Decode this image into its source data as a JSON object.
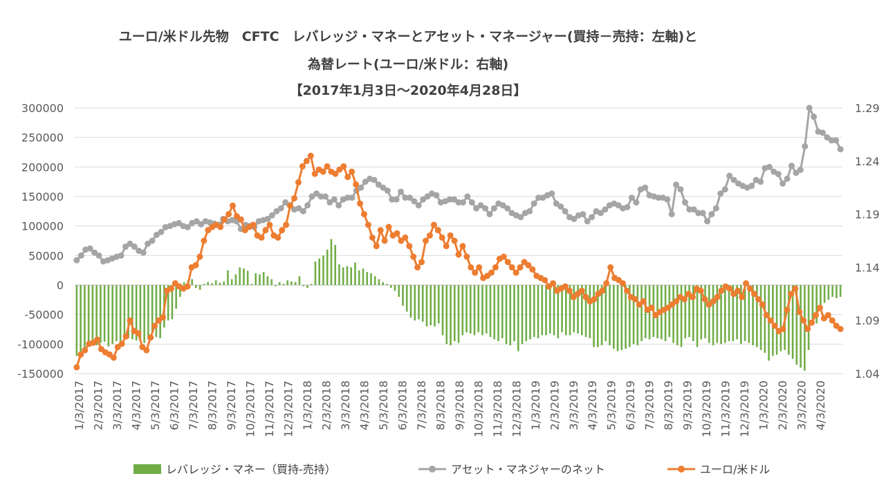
{
  "chart_data": {
    "type": "bar+line",
    "title_lines": [
      "ユーロ/米ドル先物　CFTC　レバレッジ・マネーとアセット・マネージャー(買持－売持：左軸)と",
      "為替レート(ユーロ/米ドル：右軸)",
      "【2017年1月3日～2020年4月28日】"
    ],
    "left_axis": {
      "ylim": [
        -150000,
        300000
      ],
      "ticks": [
        "300000",
        "250000",
        "200000",
        "150000",
        "100000",
        "50000",
        "0",
        "-50000",
        "-100000",
        "-150000"
      ]
    },
    "right_axis": {
      "ylim": [
        1.04,
        1.29
      ],
      "ticks": [
        "1.29",
        "1.24",
        "1.19",
        "1.14",
        "1.09",
        "1.04"
      ]
    },
    "x_tick_labels": [
      "1/3/2017",
      "2/3/2017",
      "3/3/2017",
      "4/3/2017",
      "5/3/2017",
      "6/3/2017",
      "7/3/2017",
      "8/3/2017",
      "9/3/2017",
      "10/3/2017",
      "11/3/2017",
      "12/3/2017",
      "1/3/2018",
      "2/3/2018",
      "3/3/2018",
      "4/3/2018",
      "5/3/2018",
      "6/3/2018",
      "7/3/2018",
      "8/3/2018",
      "9/3/2018",
      "10/3/2018",
      "11/3/2018",
      "12/3/2018",
      "1/3/2019",
      "2/3/2019",
      "3/3/2019",
      "4/3/2019",
      "5/3/2019",
      "6/3/2019",
      "7/3/2019",
      "8/3/2019",
      "9/3/2019",
      "10/3/2019",
      "11/3/2019",
      "12/3/2019",
      "1/3/2020",
      "2/3/2020",
      "3/3/2020",
      "4/3/2020"
    ],
    "grid": true,
    "legend_position": "bottom",
    "series": [
      {
        "name": "レバレッジ・マネー（買持-売持）",
        "kind": "bar",
        "axis": "left",
        "color": "#70AD47",
        "values": [
          -120000,
          -115000,
          -108000,
          -104000,
          -100000,
          -102000,
          -98000,
          -96000,
          -104000,
          -100000,
          -95000,
          -98000,
          -92000,
          -90000,
          -92000,
          -94000,
          -96000,
          -98000,
          -92000,
          -80000,
          -88000,
          -90000,
          -72000,
          -60000,
          -58000,
          -40000,
          -20000,
          5000,
          8000,
          10000,
          -5000,
          -8000,
          2000,
          5000,
          3000,
          8000,
          4000,
          6000,
          25000,
          10000,
          18000,
          30000,
          28000,
          24000,
          2000,
          20000,
          18000,
          22000,
          15000,
          10000,
          -2000,
          5000,
          2000,
          8000,
          6000,
          5000,
          15000,
          -2000,
          -5000,
          2000,
          40000,
          45000,
          50000,
          60000,
          78000,
          68000,
          35000,
          30000,
          32000,
          30000,
          38000,
          25000,
          28000,
          22000,
          20000,
          15000,
          10000,
          5000,
          2000,
          -5000,
          -10000,
          -20000,
          -35000,
          -45000,
          -55000,
          -60000,
          -58000,
          -62000,
          -70000,
          -68000,
          -70000,
          -65000,
          -85000,
          -100000,
          -102000,
          -95000,
          -98000,
          -85000,
          -80000,
          -82000,
          -85000,
          -80000,
          -85000,
          -82000,
          -88000,
          -92000,
          -95000,
          -90000,
          -100000,
          -102000,
          -95000,
          -112000,
          -100000,
          -95000,
          -92000,
          -88000,
          -90000,
          -85000,
          -85000,
          -82000,
          -85000,
          -90000,
          -80000,
          -85000,
          -85000,
          -80000,
          -82000,
          -85000,
          -88000,
          -90000,
          -105000,
          -105000,
          -102000,
          -95000,
          -102000,
          -108000,
          -112000,
          -110000,
          -108000,
          -105000,
          -100000,
          -102000,
          -95000,
          -90000,
          -92000,
          -88000,
          -90000,
          -92000,
          -95000,
          -88000,
          -98000,
          -102000,
          -105000,
          -90000,
          -88000,
          -95000,
          -105000,
          -92000,
          -90000,
          -98000,
          -102000,
          -98000,
          -100000,
          -98000,
          -95000,
          -95000,
          -92000,
          -100000,
          -95000,
          -98000,
          -102000,
          -105000,
          -110000,
          -115000,
          -128000,
          -120000,
          -118000,
          -112000,
          -110000,
          -118000,
          -125000,
          -135000,
          -140000,
          -145000,
          -110000,
          -60000,
          -65000,
          -40000,
          -30000,
          -25000,
          -20000,
          -22000,
          -20000
        ]
      },
      {
        "name": "アセット・マネジャーのネット",
        "kind": "line",
        "axis": "left",
        "color": "#A5A5A5",
        "values": [
          42000,
          50000,
          60000,
          62000,
          55000,
          50000,
          40000,
          42000,
          45000,
          48000,
          50000,
          65000,
          70000,
          65000,
          58000,
          55000,
          70000,
          75000,
          85000,
          90000,
          98000,
          100000,
          103000,
          105000,
          100000,
          98000,
          105000,
          108000,
          103000,
          108000,
          106000,
          104000,
          102000,
          112000,
          108000,
          110000,
          108000,
          95000,
          102000,
          100000,
          98000,
          108000,
          110000,
          112000,
          118000,
          125000,
          130000,
          140000,
          135000,
          128000,
          130000,
          125000,
          135000,
          150000,
          155000,
          150000,
          150000,
          140000,
          145000,
          135000,
          145000,
          148000,
          148000,
          160000,
          165000,
          175000,
          180000,
          178000,
          170000,
          165000,
          160000,
          145000,
          145000,
          158000,
          148000,
          148000,
          142000,
          135000,
          145000,
          150000,
          155000,
          152000,
          140000,
          142000,
          145000,
          145000,
          140000,
          140000,
          150000,
          140000,
          130000,
          135000,
          130000,
          120000,
          130000,
          138000,
          135000,
          130000,
          122000,
          118000,
          115000,
          122000,
          125000,
          138000,
          148000,
          148000,
          152000,
          155000,
          138000,
          133000,
          125000,
          115000,
          112000,
          118000,
          120000,
          108000,
          115000,
          125000,
          122000,
          128000,
          135000,
          138000,
          135000,
          130000,
          132000,
          148000,
          140000,
          162000,
          165000,
          152000,
          150000,
          148000,
          148000,
          145000,
          120000,
          170000,
          162000,
          140000,
          128000,
          128000,
          122000,
          122000,
          108000,
          120000,
          130000,
          155000,
          162000,
          185000,
          178000,
          172000,
          168000,
          165000,
          168000,
          178000,
          175000,
          198000,
          200000,
          192000,
          188000,
          172000,
          180000,
          202000,
          190000,
          195000,
          235000,
          300000,
          285000,
          260000,
          258000,
          250000,
          245000,
          245000,
          230000
        ]
      },
      {
        "name": "ユーロ/米ドル",
        "kind": "line",
        "axis": "right",
        "color": "#ED7D31",
        "values": [
          1.046,
          1.058,
          1.062,
          1.068,
          1.069,
          1.072,
          1.063,
          1.06,
          1.058,
          1.055,
          1.065,
          1.068,
          1.075,
          1.09,
          1.08,
          1.078,
          1.065,
          1.062,
          1.074,
          1.085,
          1.09,
          1.093,
          1.118,
          1.12,
          1.125,
          1.122,
          1.12,
          1.122,
          1.14,
          1.142,
          1.15,
          1.165,
          1.175,
          1.178,
          1.18,
          1.178,
          1.185,
          1.19,
          1.198,
          1.188,
          1.185,
          1.175,
          1.178,
          1.18,
          1.17,
          1.168,
          1.175,
          1.18,
          1.17,
          1.168,
          1.175,
          1.18,
          1.198,
          1.205,
          1.22,
          1.235,
          1.24,
          1.245,
          1.228,
          1.232,
          1.23,
          1.235,
          1.23,
          1.228,
          1.232,
          1.235,
          1.225,
          1.23,
          1.218,
          1.2,
          1.19,
          1.18,
          1.168,
          1.16,
          1.175,
          1.165,
          1.178,
          1.17,
          1.172,
          1.165,
          1.168,
          1.16,
          1.15,
          1.14,
          1.145,
          1.165,
          1.17,
          1.18,
          1.175,
          1.168,
          1.16,
          1.17,
          1.165,
          1.152,
          1.16,
          1.15,
          1.14,
          1.135,
          1.14,
          1.13,
          1.132,
          1.135,
          1.14,
          1.148,
          1.15,
          1.145,
          1.14,
          1.135,
          1.14,
          1.145,
          1.142,
          1.138,
          1.132,
          1.13,
          1.128,
          1.122,
          1.125,
          1.118,
          1.12,
          1.122,
          1.118,
          1.112,
          1.115,
          1.118,
          1.112,
          1.108,
          1.11,
          1.115,
          1.118,
          1.125,
          1.14,
          1.13,
          1.128,
          1.125,
          1.118,
          1.112,
          1.11,
          1.105,
          1.108,
          1.1,
          1.102,
          1.095,
          1.098,
          1.1,
          1.102,
          1.105,
          1.108,
          1.112,
          1.11,
          1.115,
          1.112,
          1.12,
          1.118,
          1.11,
          1.105,
          1.108,
          1.112,
          1.118,
          1.122,
          1.12,
          1.115,
          1.118,
          1.112,
          1.125,
          1.12,
          1.115,
          1.11,
          1.105,
          1.095,
          1.09,
          1.085,
          1.08,
          1.082,
          1.1,
          1.115,
          1.12,
          1.098,
          1.09,
          1.082,
          1.088,
          1.095,
          1.102,
          1.092,
          1.095,
          1.09,
          1.085,
          1.082
        ]
      }
    ]
  }
}
